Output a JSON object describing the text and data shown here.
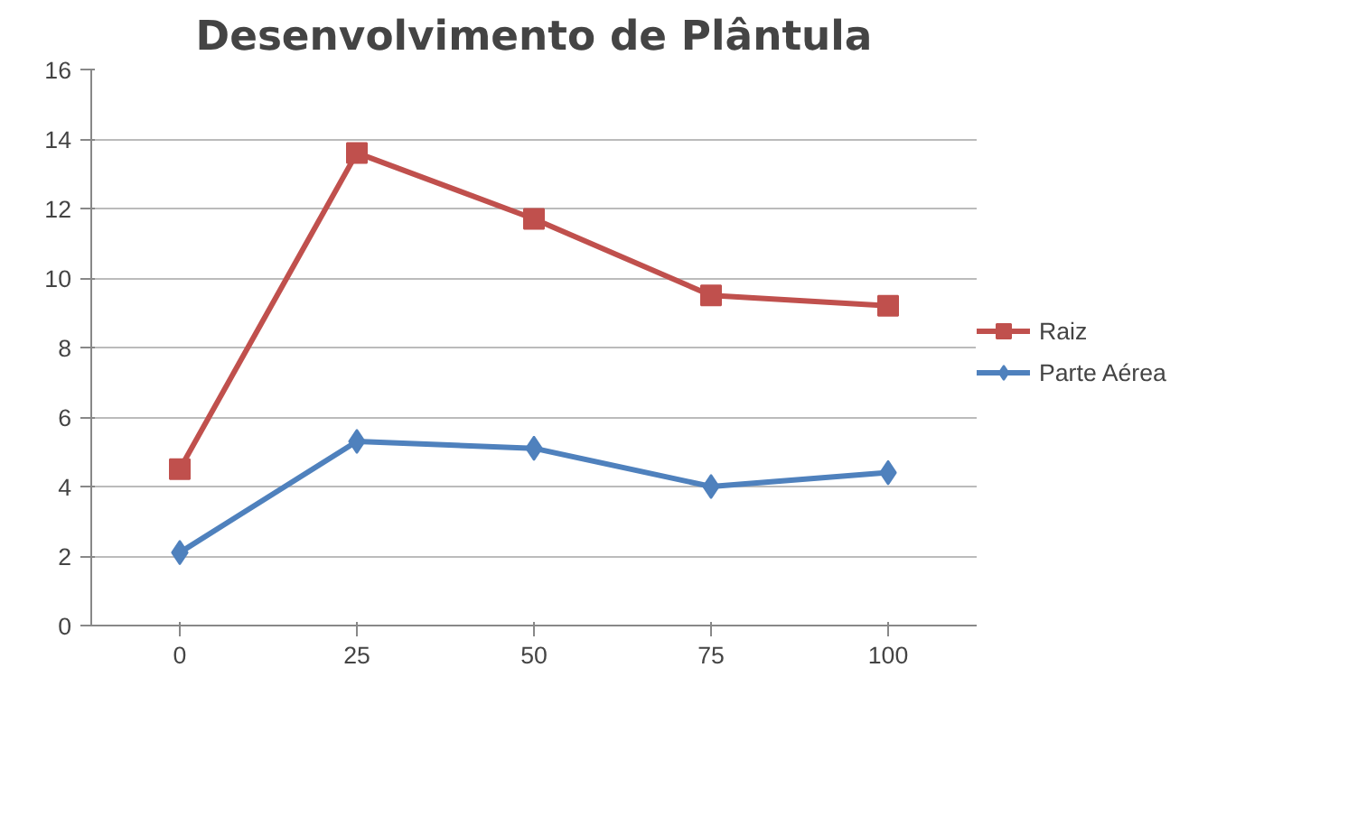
{
  "chart_data": {
    "type": "line",
    "title": "Desenvolvimento de Plântula",
    "categories": [
      "0",
      "25",
      "50",
      "75",
      "100"
    ],
    "series": [
      {
        "name": "Raiz",
        "color": "#c0504d",
        "marker": "square",
        "values": [
          4.5,
          13.6,
          11.7,
          9.5,
          9.2
        ]
      },
      {
        "name": "Parte Aérea",
        "color": "#4f81bd",
        "marker": "diamond",
        "values": [
          2.1,
          5.3,
          5.1,
          4.0,
          4.4
        ]
      }
    ],
    "ylim": [
      0,
      16
    ],
    "yticks": [
      0,
      2,
      4,
      6,
      8,
      10,
      12,
      14,
      16
    ],
    "grid": "y",
    "legend": "right"
  }
}
